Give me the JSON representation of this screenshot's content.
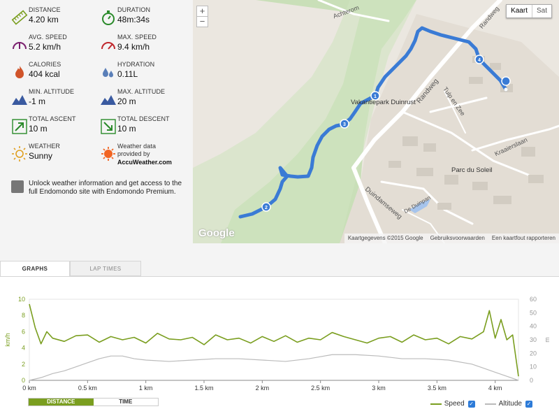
{
  "stats": [
    {
      "label": "DISTANCE",
      "value": "4.20 km",
      "icon": "ruler-icon"
    },
    {
      "label": "DURATION",
      "value": "48m:34s",
      "icon": "stopwatch-icon"
    },
    {
      "label": "AVG. SPEED",
      "value": "5.2 km/h",
      "icon": "speedometer-icon"
    },
    {
      "label": "MAX. SPEED",
      "value": "9.4 km/h",
      "icon": "speedometer-max-icon"
    },
    {
      "label": "CALORIES",
      "value": "404 kcal",
      "icon": "flame-icon"
    },
    {
      "label": "HYDRATION",
      "value": "0.11L",
      "icon": "droplets-icon"
    },
    {
      "label": "MIN. ALTITUDE",
      "value": "-1 m",
      "icon": "mountain-min-icon"
    },
    {
      "label": "MAX. ALTITUDE",
      "value": "20 m",
      "icon": "mountain-max-icon"
    },
    {
      "label": "TOTAL ASCENT",
      "value": "10 m",
      "icon": "arrow-up-right-icon"
    },
    {
      "label": "TOTAL DESCENT",
      "value": "10 m",
      "icon": "arrow-down-right-icon"
    },
    {
      "label": "WEATHER",
      "value": "Sunny",
      "icon": "sun-icon"
    }
  ],
  "weather_credit": {
    "line1": "Weather data",
    "line2": "provided by",
    "brand": "AccuWeather.com",
    "icon": "accuweather-logo-icon"
  },
  "unlock": {
    "text": "Unlock weather information and get access to the full Endomondo site with Endomondo Premium.",
    "icon": "premium-icon"
  },
  "map": {
    "zoom_in": "+",
    "zoom_out": "−",
    "type_map": "Kaart",
    "type_sat": "Sat",
    "attribution": "Kaartgegevens ©2015 Google",
    "terms": "Gebruiksvoorwaarden",
    "report": "Een kaartfout rapporteren",
    "watermark": "Google",
    "labels": {
      "achterom": "Achterom",
      "randweg_top": "Randweg",
      "randweg": "Randweg",
      "vakantiepark": "Vakantiepark Duinrust",
      "tulp": "Tulp en Zee",
      "kraaierslaan": "Kraaierslaan",
      "parc": "Parc du Soleil",
      "duindamseweg": "Duindamseweg",
      "duinpan": "De Duinpan"
    },
    "markers": [
      "1",
      "2",
      "3",
      "4"
    ]
  },
  "tabs": {
    "graphs": "GRAPHS",
    "lap_times": "LAP TIMES"
  },
  "xaxis_toggle": {
    "distance": "DISTANCE",
    "time": "TIME"
  },
  "legend": {
    "speed": "Speed",
    "altitude": "Altitude",
    "check": "✓"
  },
  "colors": {
    "speed": "#7a9e1f",
    "altitude": "#bbbbbb",
    "route": "#3a7bd5",
    "accent": "#7a9e1f"
  },
  "chart_data": {
    "type": "line",
    "xlabel": "",
    "x_ticks": [
      "0 km",
      "0.5 km",
      "1 km",
      "1.5 km",
      "2 km",
      "2.5 km",
      "3 km",
      "3.5 km",
      "4 km"
    ],
    "xlim": [
      0,
      4.2
    ],
    "y_left": {
      "label": "km/h",
      "ticks": [
        0,
        2,
        4,
        6,
        8,
        10
      ],
      "lim": [
        0,
        10
      ]
    },
    "y_right": {
      "label": "m",
      "ticks": [
        0,
        10,
        20,
        30,
        40,
        50,
        60
      ],
      "lim": [
        0,
        60
      ]
    },
    "series": [
      {
        "name": "Speed",
        "axis": "left",
        "x": [
          0,
          0.05,
          0.1,
          0.15,
          0.2,
          0.3,
          0.4,
          0.5,
          0.6,
          0.7,
          0.8,
          0.9,
          1.0,
          1.1,
          1.2,
          1.3,
          1.4,
          1.5,
          1.6,
          1.7,
          1.8,
          1.9,
          2.0,
          2.1,
          2.2,
          2.3,
          2.4,
          2.5,
          2.6,
          2.7,
          2.8,
          2.9,
          3.0,
          3.1,
          3.2,
          3.3,
          3.4,
          3.5,
          3.6,
          3.7,
          3.8,
          3.9,
          3.95,
          4.0,
          4.05,
          4.1,
          4.15,
          4.2
        ],
        "y": [
          9.4,
          6.5,
          4.5,
          6.0,
          5.2,
          4.8,
          5.5,
          5.6,
          4.7,
          5.4,
          5.0,
          5.3,
          4.6,
          5.8,
          5.1,
          5.0,
          5.3,
          4.4,
          5.6,
          5.0,
          5.2,
          4.6,
          5.4,
          4.8,
          5.5,
          4.7,
          5.2,
          5.0,
          5.9,
          5.4,
          5.0,
          4.6,
          5.2,
          5.4,
          4.7,
          5.6,
          5.0,
          5.2,
          4.5,
          5.4,
          5.1,
          6.0,
          8.6,
          5.2,
          7.5,
          5.0,
          5.6,
          0.5
        ]
      },
      {
        "name": "Altitude",
        "axis": "right",
        "x": [
          0,
          0.1,
          0.2,
          0.3,
          0.4,
          0.5,
          0.6,
          0.7,
          0.8,
          0.9,
          1.0,
          1.2,
          1.4,
          1.6,
          1.8,
          2.0,
          2.2,
          2.4,
          2.6,
          2.8,
          3.0,
          3.2,
          3.4,
          3.6,
          3.8,
          3.9,
          4.0,
          4.1,
          4.2
        ],
        "y": [
          0,
          2,
          5,
          7,
          10,
          13,
          16,
          18,
          18,
          16,
          15,
          14,
          15,
          16,
          16,
          15,
          14,
          16,
          19,
          19,
          18,
          16,
          16,
          15,
          12,
          9,
          6,
          3,
          0
        ]
      }
    ]
  }
}
